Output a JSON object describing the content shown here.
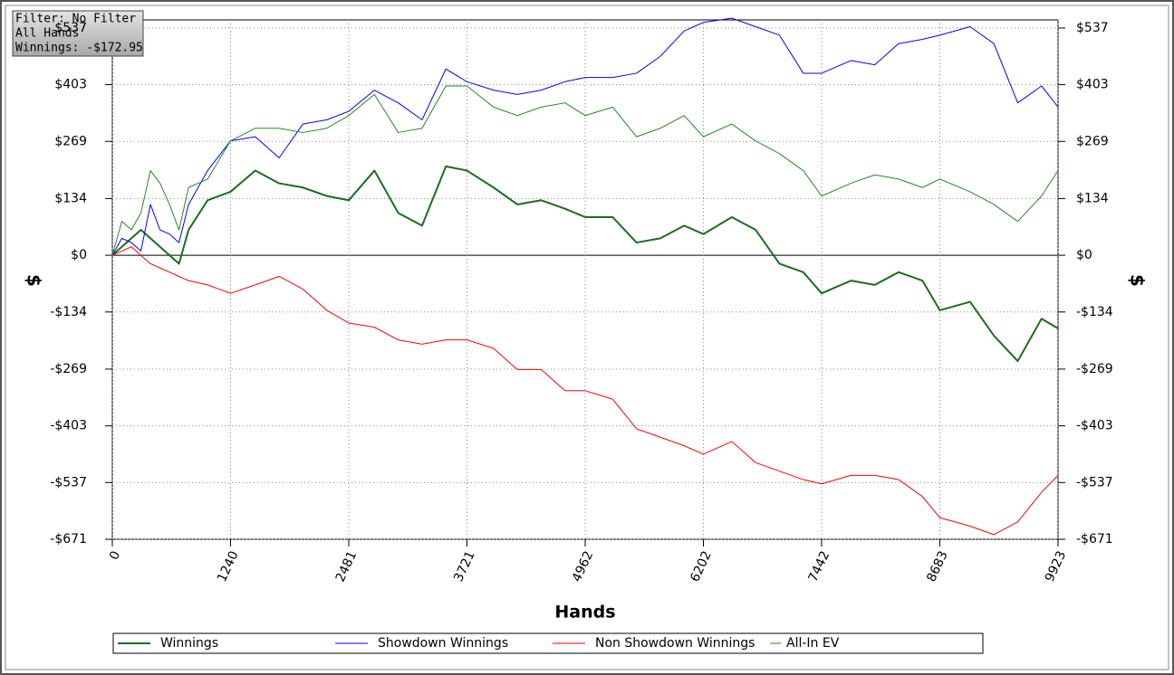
{
  "info": {
    "filter": "Filter: No Filter",
    "hands": "All Hands",
    "winnings": "Winnings: -$172.95"
  },
  "chart_data": {
    "type": "line",
    "x_label": "Hands",
    "y_label": "$",
    "y2_label": "$",
    "xlim": [
      0,
      9923
    ],
    "ylim": [
      -671,
      556
    ],
    "xticks": [
      0,
      1240,
      2481,
      3721,
      4962,
      6202,
      7442,
      8683,
      9923
    ],
    "yticks": [
      {
        "value": 537,
        "label": "$537"
      },
      {
        "value": 403,
        "label": "$403"
      },
      {
        "value": 269,
        "label": "$269"
      },
      {
        "value": 134,
        "label": "$134"
      },
      {
        "value": 0,
        "label": "$0"
      },
      {
        "value": -134,
        "label": "-$134"
      },
      {
        "value": -269,
        "label": "-$269"
      },
      {
        "value": -403,
        "label": "-$403"
      },
      {
        "value": -537,
        "label": "-$537"
      },
      {
        "value": -671,
        "label": "-$671"
      }
    ],
    "grid": true,
    "x": [
      0,
      100,
      200,
      300,
      400,
      500,
      600,
      700,
      800,
      1000,
      1240,
      1500,
      1750,
      2000,
      2250,
      2481,
      2750,
      3000,
      3250,
      3500,
      3721,
      4000,
      4250,
      4500,
      4750,
      4962,
      5250,
      5500,
      5750,
      6000,
      6202,
      6500,
      6750,
      7000,
      7250,
      7442,
      7750,
      8000,
      8250,
      8500,
      8683,
      9000,
      9250,
      9500,
      9750,
      9923
    ],
    "series": [
      {
        "name": "Winnings",
        "color": "#1b6e1b",
        "width": 2,
        "values": [
          0,
          20,
          40,
          60,
          40,
          20,
          0,
          -20,
          60,
          130,
          150,
          200,
          170,
          160,
          140,
          130,
          200,
          100,
          70,
          210,
          200,
          160,
          120,
          130,
          110,
          90,
          90,
          30,
          40,
          70,
          50,
          90,
          60,
          -20,
          -40,
          -90,
          -60,
          -70,
          -40,
          -60,
          -130,
          -110,
          -190,
          -250,
          -150,
          -173
        ]
      },
      {
        "name": "Showdown Winnings",
        "color": "#0000ff",
        "width": 1,
        "values": [
          0,
          40,
          30,
          10,
          120,
          60,
          50,
          30,
          120,
          200,
          270,
          280,
          230,
          310,
          320,
          340,
          390,
          360,
          320,
          440,
          410,
          390,
          380,
          390,
          410,
          420,
          420,
          430,
          470,
          530,
          550,
          560,
          540,
          520,
          430,
          430,
          460,
          450,
          500,
          510,
          520,
          540,
          500,
          360,
          400,
          350
        ]
      },
      {
        "name": "Non Showdown Winnings",
        "color": "#ff0000",
        "width": 1,
        "values": [
          0,
          10,
          20,
          0,
          -20,
          -30,
          -40,
          -50,
          -60,
          -70,
          -90,
          -70,
          -50,
          -80,
          -130,
          -160,
          -170,
          -200,
          -210,
          -200,
          -200,
          -220,
          -270,
          -270,
          -320,
          -320,
          -340,
          -410,
          -430,
          -450,
          -470,
          -440,
          -490,
          -510,
          -530,
          -540,
          -520,
          -520,
          -530,
          -570,
          -620,
          -640,
          -660,
          -630,
          -560,
          -520
        ]
      },
      {
        "name": "All-In EV",
        "color": "#238a23",
        "width": 1,
        "values": [
          0,
          80,
          60,
          100,
          200,
          170,
          120,
          60,
          160,
          180,
          270,
          300,
          300,
          290,
          300,
          330,
          380,
          290,
          300,
          400,
          400,
          350,
          330,
          350,
          360,
          330,
          350,
          280,
          300,
          330,
          280,
          310,
          270,
          240,
          200,
          140,
          170,
          190,
          180,
          160,
          180,
          150,
          120,
          80,
          140,
          200
        ]
      }
    ]
  }
}
